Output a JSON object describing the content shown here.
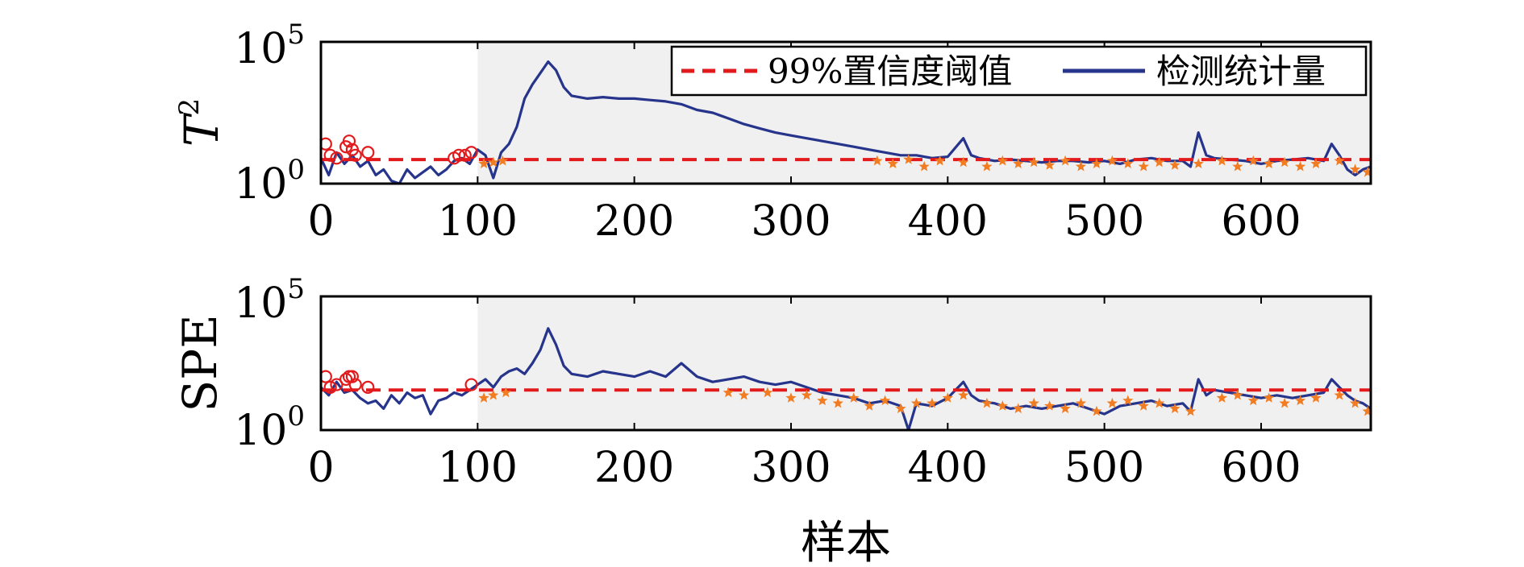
{
  "chart_data": [
    {
      "type": "line",
      "panel": "top",
      "ylabel_base": "T",
      "ylabel_exp": "2",
      "xlabel": "",
      "xlim": [
        0,
        670
      ],
      "ylim_log10": [
        0,
        5
      ],
      "y_scale": "log",
      "y_ticks": [
        {
          "base": "10",
          "exp": "0"
        },
        {
          "base": "10",
          "exp": "5"
        }
      ],
      "x_ticks": [
        "0",
        "100",
        "200",
        "300",
        "400",
        "500",
        "600"
      ],
      "shaded_region_from_sample": 100,
      "shaded_color": "#f0f0f0",
      "legend": {
        "placement": "top-right",
        "entries": [
          {
            "label": "99%置信度阈值",
            "style": "dashed",
            "color": "#e31a1c"
          },
          {
            "label": "检测统计量",
            "style": "solid",
            "color": "#26348b"
          }
        ]
      },
      "threshold_log10": 0.85,
      "series": [
        {
          "name": "检测统计量",
          "color": "#26348b",
          "x": [
            0,
            5,
            10,
            15,
            20,
            25,
            30,
            35,
            40,
            45,
            50,
            55,
            60,
            65,
            70,
            75,
            80,
            85,
            90,
            95,
            100,
            105,
            110,
            115,
            120,
            125,
            130,
            135,
            140,
            145,
            150,
            155,
            160,
            170,
            180,
            190,
            200,
            210,
            220,
            230,
            240,
            250,
            260,
            270,
            280,
            290,
            300,
            310,
            320,
            330,
            340,
            350,
            360,
            370,
            380,
            390,
            400,
            410,
            415,
            420,
            430,
            440,
            450,
            460,
            470,
            480,
            490,
            500,
            510,
            520,
            530,
            540,
            550,
            555,
            560,
            565,
            570,
            580,
            590,
            600,
            610,
            620,
            630,
            640,
            645,
            650,
            655,
            660,
            665,
            670
          ],
          "y_log10": [
            0.9,
            0.3,
            1.1,
            0.7,
            1.0,
            0.6,
            0.8,
            0.3,
            0.5,
            0.1,
            0.0,
            0.5,
            0.2,
            0.4,
            0.6,
            0.3,
            0.5,
            0.8,
            0.9,
            0.7,
            1.2,
            1.0,
            0.2,
            1.1,
            1.4,
            2.0,
            3.0,
            3.5,
            3.9,
            4.3,
            4.0,
            3.4,
            3.1,
            3.0,
            3.05,
            3.0,
            3.0,
            2.95,
            2.9,
            2.8,
            2.6,
            2.5,
            2.3,
            2.1,
            1.95,
            1.8,
            1.7,
            1.6,
            1.5,
            1.4,
            1.3,
            1.2,
            1.1,
            1.0,
            1.0,
            0.9,
            0.95,
            1.6,
            1.0,
            0.9,
            0.8,
            0.85,
            0.8,
            0.75,
            0.8,
            0.8,
            0.75,
            0.8,
            0.7,
            0.85,
            0.9,
            0.8,
            0.8,
            0.6,
            1.8,
            1.0,
            0.9,
            0.85,
            0.8,
            0.7,
            0.8,
            0.85,
            0.9,
            0.8,
            1.4,
            1.0,
            0.5,
            0.3,
            0.5,
            0.6
          ]
        },
        {
          "name": "normal-sample markers",
          "color": "#e31a1c",
          "marker": "circle",
          "x": [
            3,
            6,
            10,
            16,
            18,
            20,
            22,
            30,
            85,
            88,
            92,
            96
          ],
          "y_log10": [
            1.4,
            1.0,
            0.9,
            1.3,
            1.5,
            1.2,
            1.0,
            1.1,
            0.9,
            1.0,
            1.0,
            1.1
          ]
        },
        {
          "name": "below-threshold markers",
          "color": "#f27c21",
          "marker": "star",
          "x": [
            104,
            110,
            116,
            355,
            365,
            375,
            385,
            395,
            410,
            425,
            435,
            445,
            455,
            465,
            475,
            485,
            495,
            505,
            515,
            525,
            535,
            545,
            560,
            575,
            585,
            595,
            605,
            615,
            625,
            635,
            650,
            660,
            668
          ],
          "y_log10": [
            0.7,
            0.75,
            0.8,
            0.8,
            0.7,
            0.85,
            0.6,
            0.8,
            0.75,
            0.6,
            0.8,
            0.7,
            0.75,
            0.65,
            0.8,
            0.6,
            0.7,
            0.8,
            0.7,
            0.6,
            0.75,
            0.65,
            0.7,
            0.8,
            0.6,
            0.8,
            0.7,
            0.75,
            0.6,
            0.7,
            0.8,
            0.5,
            0.4
          ]
        }
      ]
    },
    {
      "type": "line",
      "panel": "bottom",
      "ylabel": "SPE",
      "xlabel": "样本",
      "xlim": [
        0,
        670
      ],
      "ylim_log10": [
        0,
        5
      ],
      "y_scale": "log",
      "y_ticks": [
        {
          "base": "10",
          "exp": "0"
        },
        {
          "base": "10",
          "exp": "5"
        }
      ],
      "x_ticks": [
        "0",
        "100",
        "200",
        "300",
        "400",
        "500",
        "600"
      ],
      "shaded_region_from_sample": 100,
      "shaded_color": "#f0f0f0",
      "threshold_log10": 1.5,
      "series": [
        {
          "name": "检测统计量",
          "color": "#26348b",
          "x": [
            0,
            5,
            10,
            15,
            20,
            25,
            30,
            35,
            40,
            45,
            50,
            55,
            60,
            65,
            70,
            75,
            80,
            85,
            90,
            95,
            100,
            105,
            110,
            115,
            120,
            125,
            130,
            135,
            140,
            145,
            150,
            155,
            160,
            170,
            180,
            190,
            200,
            210,
            220,
            230,
            240,
            250,
            260,
            270,
            280,
            290,
            300,
            310,
            320,
            330,
            340,
            350,
            360,
            370,
            375,
            380,
            390,
            400,
            410,
            415,
            420,
            430,
            440,
            450,
            460,
            470,
            480,
            490,
            500,
            510,
            520,
            530,
            540,
            550,
            555,
            560,
            565,
            570,
            580,
            590,
            600,
            610,
            620,
            630,
            640,
            645,
            650,
            655,
            660,
            665,
            670
          ],
          "y_log10": [
            1.6,
            1.3,
            1.8,
            1.4,
            1.5,
            1.2,
            1.0,
            1.1,
            0.8,
            1.3,
            1.0,
            1.4,
            1.2,
            1.3,
            0.6,
            1.1,
            1.2,
            1.4,
            1.3,
            1.5,
            1.7,
            1.9,
            1.6,
            2.0,
            2.2,
            2.3,
            2.1,
            2.5,
            3.0,
            3.8,
            3.2,
            2.4,
            2.1,
            2.0,
            2.2,
            2.1,
            2.0,
            2.2,
            2.0,
            2.5,
            2.0,
            1.8,
            1.9,
            2.0,
            1.8,
            1.7,
            1.8,
            1.6,
            1.4,
            1.3,
            1.2,
            1.0,
            1.1,
            0.9,
            0.0,
            1.0,
            0.9,
            1.2,
            1.8,
            1.3,
            1.1,
            1.0,
            0.8,
            0.9,
            0.8,
            0.9,
            1.0,
            0.8,
            0.6,
            0.9,
            1.0,
            1.1,
            0.9,
            1.0,
            0.7,
            1.9,
            1.3,
            1.5,
            1.4,
            1.3,
            1.2,
            1.3,
            1.2,
            1.3,
            1.4,
            1.9,
            1.6,
            1.3,
            1.1,
            1.0,
            0.8
          ]
        },
        {
          "name": "normal-sample markers",
          "color": "#e31a1c",
          "marker": "circle",
          "x": [
            3,
            6,
            10,
            16,
            18,
            20,
            22,
            30,
            96
          ],
          "y_log10": [
            2.0,
            1.6,
            1.7,
            1.9,
            2.0,
            2.0,
            1.7,
            1.6,
            1.7
          ]
        },
        {
          "name": "below-threshold markers",
          "color": "#f27c21",
          "marker": "star",
          "x": [
            104,
            110,
            118,
            260,
            270,
            285,
            300,
            310,
            320,
            330,
            340,
            350,
            360,
            370,
            380,
            390,
            400,
            410,
            425,
            435,
            445,
            455,
            465,
            475,
            485,
            495,
            505,
            515,
            525,
            535,
            545,
            555,
            575,
            585,
            595,
            605,
            615,
            625,
            635,
            650,
            660,
            668
          ],
          "y_log10": [
            1.2,
            1.3,
            1.4,
            1.4,
            1.3,
            1.4,
            1.2,
            1.3,
            1.1,
            1.0,
            1.2,
            0.9,
            1.1,
            0.8,
            1.0,
            1.0,
            1.2,
            1.3,
            1.0,
            0.9,
            0.8,
            1.0,
            0.9,
            0.8,
            1.0,
            0.7,
            1.0,
            1.1,
            0.9,
            1.0,
            0.8,
            0.7,
            1.2,
            1.3,
            1.1,
            1.2,
            1.0,
            1.1,
            1.2,
            1.3,
            1.0,
            0.7
          ]
        }
      ]
    }
  ]
}
